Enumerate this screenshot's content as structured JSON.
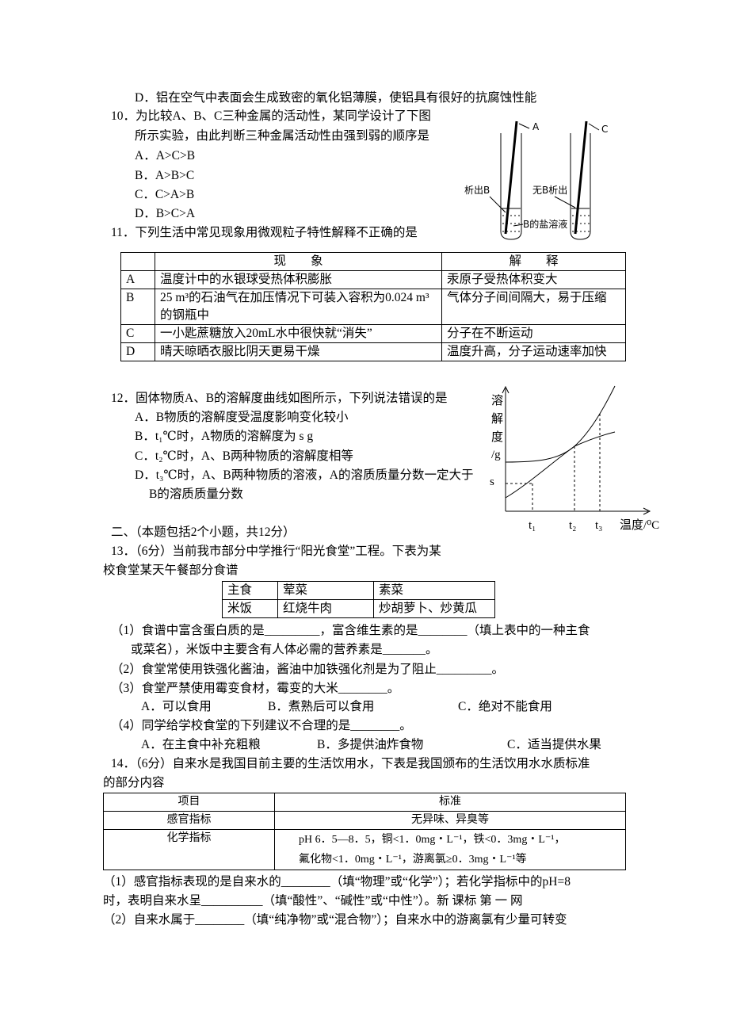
{
  "q9_tail": "D．铝在空气中表面会生成致密的氧化铝薄膜，使铝具有很好的抗腐蚀性能",
  "q10": {
    "stem": [
      "10．为比较A、B、C三种金属的活动性，某同学设计了下图",
      "所示实验，由此判断三种金属活动性由强到弱的顺序是"
    ],
    "options": [
      "A．A>C>B",
      "B．A>B>C",
      "C．C>A>B",
      "D．B>C>A"
    ],
    "figure": {
      "rod_a": "A",
      "rod_c": "C",
      "left_note": "析出B",
      "right_note": "无B析出",
      "solution": "B的盐溶液"
    }
  },
  "q11": {
    "stem": "11．下列生活中常见现象用微观粒子特性解释不正确的是",
    "table": {
      "header": [
        "现　　象",
        "解　　释"
      ],
      "rows": [
        [
          "A",
          "温度计中的水银球受热体积膨胀",
          "汞原子受热体积变大"
        ],
        [
          "B",
          "25 m³的石油气在加压情况下可装入容积为0.024 m³的钢瓶中",
          "气体分子间间隔大，易于压缩"
        ],
        [
          "C",
          "一小匙蔗糖放入20mL水中很快就“消失”",
          "分子在不断运动"
        ],
        [
          "D",
          "晴天晾晒衣服比阴天更易干燥",
          "温度升高，分子运动速率加快"
        ]
      ]
    }
  },
  "q12": {
    "stem": "12．固体物质A、B的溶解度曲线如图所示，下列说法错误的是",
    "options": [
      "A．B物质的溶解度受温度影响变化较小",
      "B．t₁℃时，A物质的溶解度为 s  g",
      "C．t₂℃时，A、B两种物质的溶解度相等",
      [
        "D．t₃℃时，A、B两种物质的溶液，A的溶质质量分数一定大于",
        "B的溶质质量分数"
      ]
    ],
    "graph": {
      "y_label": [
        "溶",
        "解",
        "度",
        "/g"
      ],
      "s": "s",
      "t": [
        "t₁",
        "t₂",
        "t₃"
      ],
      "x_label": "温度/⁰C"
    }
  },
  "section2": "二、（本题包括2个小题，共12分）",
  "q13": {
    "stem": [
      "13．（6分）当前我市部分中学推行“阳光食堂”工程。下表为某",
      "校食堂某天午餐部分食谱"
    ],
    "table": [
      [
        "主食",
        "荤菜",
        "素菜"
      ],
      [
        "米饭",
        "红烧牛肉",
        "炒胡萝卜、炒黄瓜"
      ]
    ],
    "parts": [
      "（1）食谱中富含蛋白质的是_________，富含维生素的是________（填上表中的一种主食",
      "或菜名），米饭中主要含有人体必需的营养素是_______。",
      "（2）食堂常使用铁强化酱油，酱油中加铁强化剂是为了阻止_________。",
      "（3）食堂严禁使用霉变食材，霉变的大米________。",
      "（4）同学给学校食堂的下列建议不合理的是________。"
    ],
    "options3": [
      "A．可以食用",
      "B．煮熟后可以食用",
      "C．绝对不能食用"
    ],
    "options4": [
      "A．在主食中补充粗粮",
      "B．多提供油炸食物",
      "C．适当提供水果"
    ]
  },
  "q14": {
    "stem": [
      "14．（6分）自来水是我国目前主要的生活饮用水，下表是我国颁布的生活饮用水水质标准",
      "的部分内容"
    ],
    "table": {
      "header": [
        "项目",
        "标准"
      ],
      "rows": [
        [
          "感官指标",
          "无异味、异臭等"
        ],
        [
          "化学指标",
          [
            "pH 6．5—8．5，铜<1．0mg・L⁻¹，铁<0．3mg・L⁻¹，",
            "氟化物<1．0mg・L⁻¹，游离氯≥0．3mg・L⁻¹等"
          ]
        ]
      ]
    },
    "parts": [
      "（1）感官指标表现的是自来水的________（填“物理”或“化学”）；若化学指标中的pH=8",
      "时，表明自来水呈__________（填“酸性”、“碱性”或“中性”）。新 课标 第 一 网",
      "（2）自来水属于________（填“纯净物”或“混合物”）；自来水中的游离氯有少量可转变"
    ]
  }
}
